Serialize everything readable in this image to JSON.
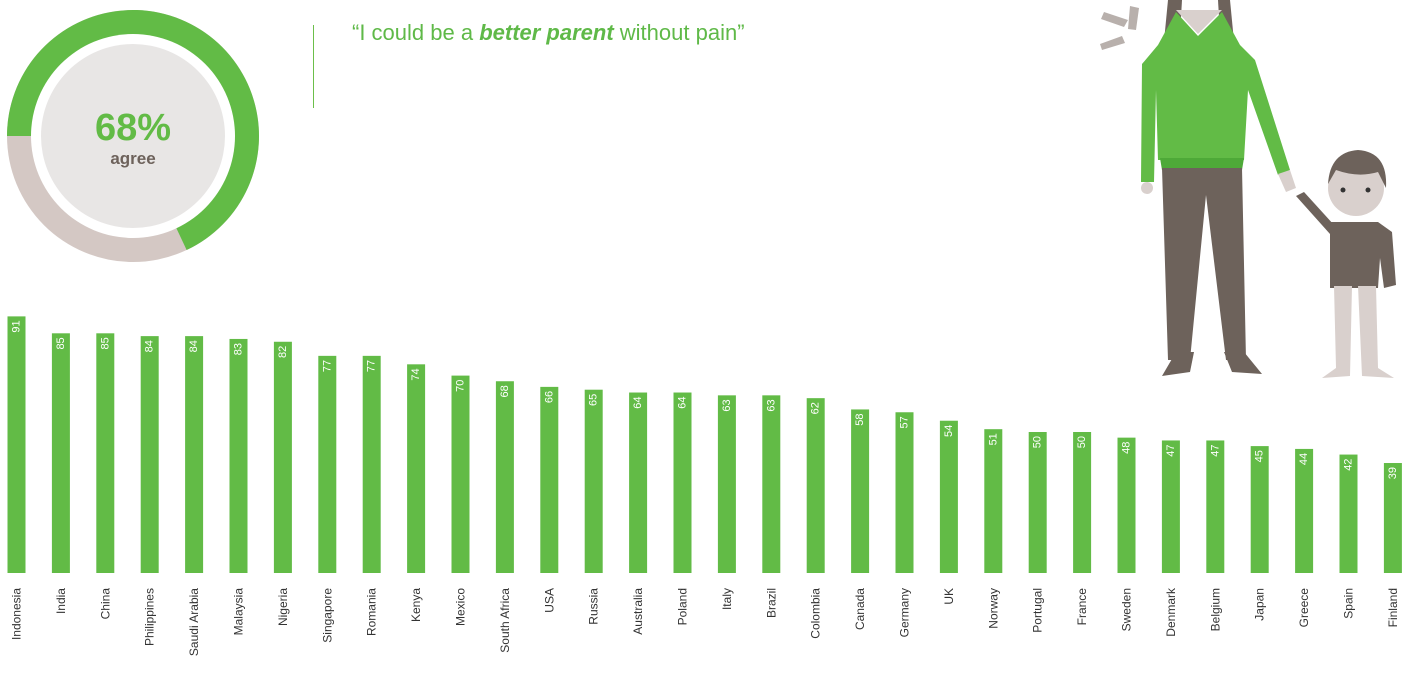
{
  "summary": {
    "percent": "68%",
    "label": "agree",
    "value": 68
  },
  "quote": {
    "before": "“I could be a ",
    "emphasis": "better parent",
    "after": " without pain”"
  },
  "colors": {
    "green": "#62bb46",
    "grey": "#d4c8c4",
    "inner": "#e8e6e5",
    "brown": "#6d625b",
    "skin": "#d9d0cd",
    "white_label": "#ffffff",
    "axis_text": "#333333"
  },
  "chart_data": {
    "type": "bar",
    "categories": [
      "Indonesia",
      "India",
      "China",
      "Philippines",
      "Saudi Arabia",
      "Malaysia",
      "Nigeria",
      "Singapore",
      "Romania",
      "Kenya",
      "Mexico",
      "South Africa",
      "USA",
      "Russia",
      "Australia",
      "Poland",
      "Italy",
      "Brazil",
      "Colombia",
      "Canada",
      "Germany",
      "UK",
      "Norway",
      "Portugal",
      "France",
      "Sweden",
      "Denmark",
      "Belgium",
      "Japan",
      "Greece",
      "Spain",
      "Finland"
    ],
    "values": [
      91,
      85,
      85,
      84,
      84,
      83,
      82,
      77,
      77,
      74,
      70,
      68,
      66,
      65,
      64,
      64,
      63,
      63,
      62,
      58,
      57,
      54,
      51,
      50,
      50,
      48,
      47,
      47,
      45,
      44,
      42,
      39
    ],
    "ylim": [
      0,
      100
    ],
    "grid": false,
    "value_labels": "inside-top-rotated"
  }
}
